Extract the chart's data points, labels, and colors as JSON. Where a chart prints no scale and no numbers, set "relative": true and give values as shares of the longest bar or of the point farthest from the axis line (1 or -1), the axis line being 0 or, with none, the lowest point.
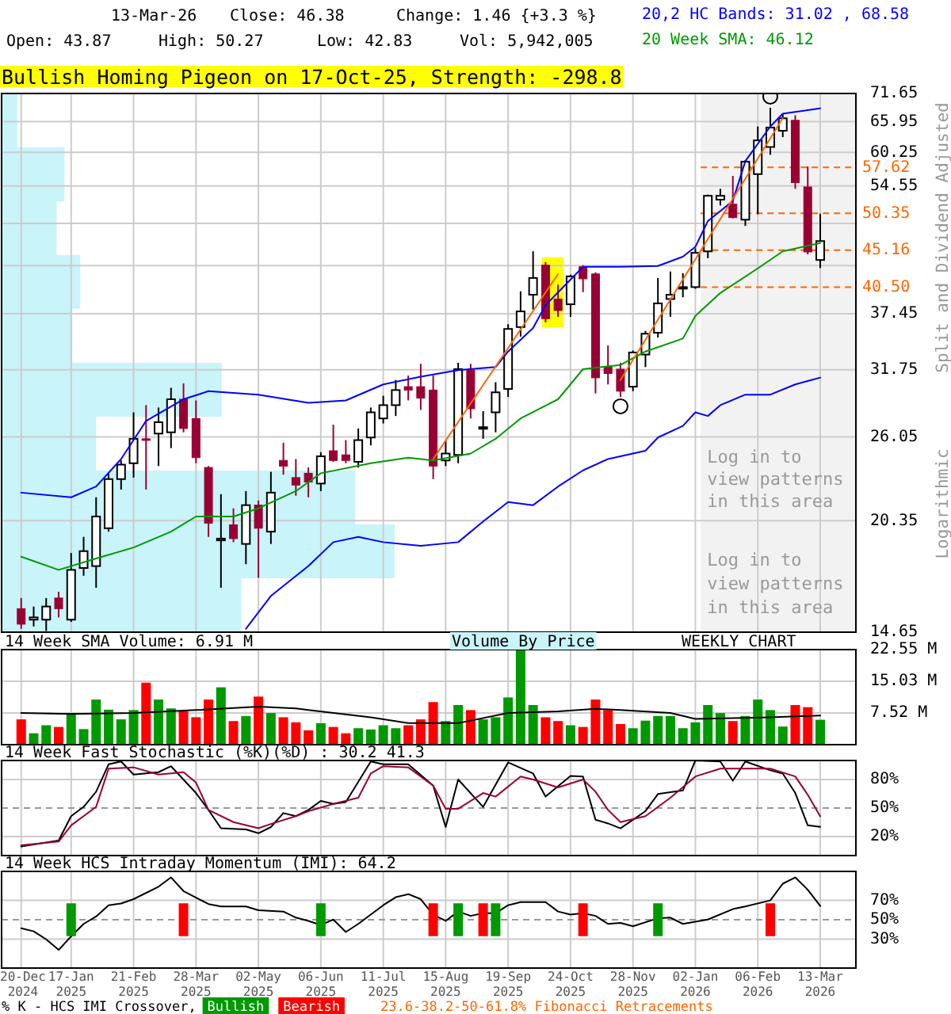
{
  "chart_data": [
    {
      "type": "candlestick",
      "title": "Bullish Homing Pigeon on 17-Oct-25, Strength: -298.8",
      "ylabel": "Split and Dividend Adjusted",
      "annotations": [
        "13-Mar-26",
        "Close: 46.38",
        "Change: 1.46 {+3.3 %}",
        "Open: 43.87",
        "High: 50.27",
        "Low: 42.83",
        "Vol: 5,942,005",
        "Log in to view patterns in this area",
        "Logarithmic"
      ],
      "x": [
        "2024-12-20",
        "2024-12-27",
        "2025-01-03",
        "2025-01-10",
        "2025-01-17",
        "2025-01-24",
        "2025-01-31",
        "2025-02-07",
        "2025-02-14",
        "2025-02-21",
        "2025-02-28",
        "2025-03-07",
        "2025-03-14",
        "2025-03-21",
        "2025-03-28",
        "2025-04-04",
        "2025-04-11",
        "2025-04-18",
        "2025-04-25",
        "2025-05-02",
        "2025-05-09",
        "2025-05-16",
        "2025-05-23",
        "2025-05-30",
        "2025-06-06",
        "2025-06-13",
        "2025-06-20",
        "2025-06-27",
        "2025-07-04",
        "2025-07-11",
        "2025-07-18",
        "2025-07-25",
        "2025-08-01",
        "2025-08-08",
        "2025-08-15",
        "2025-08-22",
        "2025-08-29",
        "2025-09-05",
        "2025-09-12",
        "2025-09-19",
        "2025-09-26",
        "2025-10-03",
        "2025-10-10",
        "2025-10-17",
        "2025-10-24",
        "2025-10-31",
        "2025-11-07",
        "2025-11-14",
        "2025-11-21",
        "2025-11-28",
        "2025-12-05",
        "2025-12-12",
        "2025-12-19",
        "2025-12-26",
        "2026-01-02",
        "2026-01-09",
        "2026-01-16",
        "2026-01-23",
        "2026-01-30",
        "2026-02-06",
        "2026-02-13",
        "2026-02-20",
        "2026-02-27",
        "2026-03-06",
        "2026-03-13"
      ],
      "ohlc": [
        [
          15.7,
          16.2,
          14.8,
          15.0
        ],
        [
          15.2,
          15.8,
          14.9,
          15.3
        ],
        [
          15.2,
          16.2,
          14.7,
          15.8
        ],
        [
          16.2,
          16.5,
          15.3,
          15.7
        ],
        [
          15.2,
          18.5,
          15.1,
          17.6
        ],
        [
          17.7,
          19.4,
          17.3,
          18.6
        ],
        [
          17.8,
          21.8,
          16.7,
          20.6
        ],
        [
          19.9,
          23.4,
          19.7,
          23.0
        ],
        [
          23.0,
          24.3,
          22.3,
          24.0
        ],
        [
          24.1,
          28.0,
          23.1,
          25.9
        ],
        [
          25.9,
          28.6,
          22.3,
          25.8
        ],
        [
          26.3,
          28.4,
          23.9,
          27.2
        ],
        [
          26.4,
          30.1,
          25.2,
          29.1
        ],
        [
          29.1,
          30.5,
          26.4,
          26.7
        ],
        [
          27.5,
          29.0,
          24.1,
          24.5
        ],
        [
          23.8,
          23.9,
          19.4,
          20.2
        ],
        [
          19.2,
          22.0,
          16.7,
          19.3
        ],
        [
          20.1,
          21.1,
          19.1,
          19.3
        ],
        [
          19.0,
          22.2,
          17.9,
          21.3
        ],
        [
          21.3,
          21.6,
          17.2,
          19.9
        ],
        [
          19.7,
          23.5,
          19.0,
          22.1
        ],
        [
          24.3,
          25.6,
          23.3,
          23.9
        ],
        [
          23.1,
          24.4,
          21.9,
          22.6
        ],
        [
          23.4,
          23.8,
          21.8,
          22.8
        ],
        [
          22.7,
          24.9,
          22.2,
          24.6
        ],
        [
          25.0,
          27.0,
          24.2,
          24.3
        ],
        [
          24.7,
          25.8,
          24.1,
          24.3
        ],
        [
          24.2,
          26.7,
          23.8,
          25.8
        ],
        [
          26.0,
          28.4,
          25.4,
          28.0
        ],
        [
          27.5,
          29.4,
          27.1,
          28.6
        ],
        [
          28.6,
          30.8,
          27.7,
          29.9
        ],
        [
          30.2,
          31.2,
          29.0,
          29.9
        ],
        [
          30.2,
          32.3,
          28.2,
          29.2
        ],
        [
          29.9,
          31.2,
          23.0,
          23.9
        ],
        [
          24.3,
          25.8,
          23.9,
          24.8
        ],
        [
          24.7,
          32.4,
          24.1,
          31.8
        ],
        [
          31.7,
          32.3,
          27.5,
          28.3
        ],
        [
          26.7,
          28.1,
          25.9,
          26.8
        ],
        [
          28.0,
          30.6,
          26.4,
          29.7
        ],
        [
          30.0,
          36.3,
          29.3,
          35.8
        ],
        [
          36.0,
          40.0,
          35.0,
          37.7
        ],
        [
          39.6,
          45.0,
          37.9,
          41.6
        ],
        [
          43.2,
          43.6,
          36.5,
          36.9
        ],
        [
          39.1,
          40.8,
          37.1,
          37.8
        ],
        [
          38.5,
          42.0,
          37.1,
          41.8
        ],
        [
          43.0,
          43.2,
          39.9,
          41.5
        ],
        [
          42.1,
          42.3,
          29.6,
          31.0
        ],
        [
          32.0,
          34.1,
          30.4,
          31.4
        ],
        [
          31.8,
          32.4,
          29.3,
          29.8
        ],
        [
          30.2,
          33.6,
          29.8,
          33.4
        ],
        [
          33.2,
          35.6,
          32.0,
          35.3
        ],
        [
          35.4,
          41.6,
          34.9,
          38.6
        ],
        [
          39.1,
          42.4,
          37.1,
          39.6
        ],
        [
          40.4,
          42.2,
          39.3,
          40.5
        ],
        [
          40.5,
          45.4,
          40.3,
          44.8
        ],
        [
          45.0,
          53.2,
          44.1,
          53.0
        ],
        [
          52.4,
          54.1,
          51.5,
          53.0
        ],
        [
          51.7,
          56.2,
          49.6,
          49.7
        ],
        [
          49.4,
          58.9,
          48.5,
          58.6
        ],
        [
          56.5,
          65.0,
          50.2,
          62.4
        ],
        [
          61.2,
          68.7,
          59.8,
          64.8
        ],
        [
          64.2,
          67.5,
          63.0,
          66.6
        ],
        [
          66.2,
          67.2,
          54.1,
          55.1
        ],
        [
          54.4,
          57.8,
          44.6,
          44.92
        ],
        [
          43.87,
          50.27,
          42.83,
          46.38
        ]
      ],
      "series": [
        {
          "type": "line",
          "name": "20,2 HC Bands: 31.02 , 68.58",
          "color": "#0000ff",
          "x": [
            "2024-12-20",
            "2025-01-17",
            "2025-01-31",
            "2025-02-14",
            "2025-02-28",
            "2025-03-21",
            "2025-04-04",
            "2025-05-02",
            "2025-05-30",
            "2025-06-20",
            "2025-07-11",
            "2025-08-01",
            "2025-08-22",
            "2025-09-12",
            "2025-09-19",
            "2025-10-03",
            "2025-10-10",
            "2025-10-31",
            "2025-11-21",
            "2025-12-12",
            "2025-12-26",
            "2026-01-02",
            "2026-01-09",
            "2026-01-23",
            "2026-01-30",
            "2026-02-13",
            "2026-02-20",
            "2026-03-13"
          ],
          "values": [
            22.1,
            21.8,
            22.5,
            24.4,
            27.3,
            29.1,
            29.8,
            29.5,
            28.8,
            29.0,
            30.4,
            31.1,
            31.7,
            32.0,
            33.5,
            35.9,
            38.4,
            43.0,
            43.0,
            43.1,
            44.3,
            45.6,
            49.2,
            52.2,
            58.7,
            65.0,
            67.5,
            68.58
          ]
        },
        {
          "type": "line",
          "color": "#0000ff",
          "x": [
            "2025-04-25",
            "2025-05-09",
            "2025-05-30",
            "2025-06-13",
            "2025-06-27",
            "2025-07-11",
            "2025-08-01",
            "2025-08-22",
            "2025-09-05",
            "2025-09-19",
            "2025-10-03",
            "2025-10-17",
            "2025-10-31",
            "2025-11-14",
            "2025-12-05",
            "2025-12-12",
            "2025-12-26",
            "2026-01-02",
            "2026-01-09",
            "2026-01-16",
            "2026-01-30",
            "2026-02-13",
            "2026-02-27",
            "2026-03-13"
          ],
          "values": [
            14.8,
            16.3,
            17.8,
            19.1,
            19.4,
            19.1,
            18.9,
            19.1,
            20.3,
            21.5,
            21.3,
            22.5,
            23.6,
            24.4,
            25.0,
            26.0,
            26.9,
            28.0,
            27.7,
            28.6,
            29.5,
            29.5,
            30.4,
            31.02
          ]
        },
        {
          "type": "line",
          "name": "20 Week SMA: 46.12",
          "color": "#009900",
          "x": [
            "2024-12-20",
            "2025-01-10",
            "2025-01-31",
            "2025-02-21",
            "2025-03-14",
            "2025-03-28",
            "2025-04-18",
            "2025-05-02",
            "2025-05-23",
            "2025-06-06",
            "2025-07-04",
            "2025-07-25",
            "2025-08-08",
            "2025-08-29",
            "2025-09-12",
            "2025-09-26",
            "2025-10-17",
            "2025-10-31",
            "2025-11-21",
            "2025-12-05",
            "2025-12-26",
            "2026-01-02",
            "2026-01-16",
            "2026-02-06",
            "2026-02-20",
            "2026-03-13"
          ],
          "values": [
            18.3,
            17.6,
            18.2,
            18.8,
            19.7,
            20.6,
            20.6,
            21.1,
            22.2,
            23.4,
            24.1,
            24.5,
            24.3,
            24.8,
            25.9,
            27.5,
            29.1,
            31.8,
            32.2,
            33.5,
            34.8,
            37.2,
            39.8,
            42.8,
            45.0,
            46.12
          ]
        },
        {
          "type": "line",
          "color": "#ff6600",
          "x": [
            "2025-08-08",
            "2025-10-17"
          ],
          "values": [
            24.4,
            42.1
          ]
        },
        {
          "type": "line",
          "color": "#ff6600",
          "x": [
            "2025-11-21",
            "2026-02-20"
          ],
          "values": [
            30.8,
            66.6
          ]
        },
        {
          "type": "scatter",
          "marker": "circle",
          "color": "#000000",
          "x": [
            "2025-11-21",
            "2026-02-13"
          ],
          "values": [
            28.5,
            71.0
          ]
        }
      ],
      "xlim": [
        "2024-12-09",
        "2026-04-02"
      ],
      "ylim": [
        14.65,
        71.65
      ],
      "log": true,
      "xticks": [
        "2024-12-20",
        "2025-01-17",
        "2025-02-21",
        "2025-03-28",
        "2025-05-02",
        "2025-06-06",
        "2025-07-11",
        "2025-08-15",
        "2025-09-19",
        "2025-10-24",
        "2025-11-28",
        "2026-01-02",
        "2026-02-06",
        "2026-03-13"
      ],
      "yticks": [
        14.65,
        20.35,
        26.05,
        31.75,
        37.45,
        {
          "value": 43.15,
          "label": null
        },
        {
          "value": 48.85,
          "label": null
        },
        54.55,
        60.25,
        65.95,
        71.65
      ],
      "grid": true,
      "legend": "top right",
      "tick_labels": "y",
      "bands": [
        {
          "axis": "x",
          "from": "2025-10-08",
          "to": "2025-10-20",
          "color": "#ffff00"
        },
        {
          "axis": "x",
          "from": "2026-01-05",
          "to": "2026-04-02",
          "label": "Log in to view patterns in this area",
          "color": "#f2f2f2"
        }
      ],
      "ref_lines": [
        {
          "axis": "y",
          "value": 57.62,
          "label": "57.62",
          "color": "#ff6600",
          "line_style": "dashed"
        },
        {
          "axis": "y",
          "value": 50.35,
          "label": "50.35",
          "color": "#ff6600",
          "line_style": "dashed"
        },
        {
          "axis": "y",
          "value": 45.16,
          "label": "45.16",
          "color": "#ff6600",
          "line_style": "dashed"
        },
        {
          "axis": "y",
          "value": 40.5,
          "label": "40.50",
          "color": "#ff6600",
          "line_style": "dashed"
        }
      ]
    },
    {
      "type": "bar",
      "orientation": "horizontal",
      "relative": true,
      "categories": [
        null,
        null,
        null,
        null,
        null,
        null,
        null,
        null,
        null,
        null
      ],
      "values": [
        0.04,
        0.16,
        0.14,
        0.2,
        0.18,
        0.56,
        0.24,
        0.9,
        1,
        0.61
      ],
      "color": "#c8f4fa",
      "tick_labels": false
    },
    {
      "type": "bar",
      "title": "14 Week SMA Volume: 6.91 M",
      "annotations": [
        "Volume By Price",
        "WEEKLY CHART"
      ],
      "x": [
        "2024-12-20",
        "2024-12-27",
        "2025-01-03",
        "2025-01-10",
        "2025-01-17",
        "2025-01-24",
        "2025-01-31",
        "2025-02-07",
        "2025-02-14",
        "2025-02-21",
        "2025-02-28",
        "2025-03-07",
        "2025-03-14",
        "2025-03-21",
        "2025-03-28",
        "2025-04-04",
        "2025-04-11",
        "2025-04-18",
        "2025-04-25",
        "2025-05-02",
        "2025-05-09",
        "2025-05-16",
        "2025-05-23",
        "2025-05-30",
        "2025-06-06",
        "2025-06-13",
        "2025-06-20",
        "2025-06-27",
        "2025-07-04",
        "2025-07-11",
        "2025-07-18",
        "2025-07-25",
        "2025-08-01",
        "2025-08-08",
        "2025-08-15",
        "2025-08-22",
        "2025-08-29",
        "2025-09-05",
        "2025-09-12",
        "2025-09-19",
        "2025-09-26",
        "2025-10-03",
        "2025-10-10",
        "2025-10-17",
        "2025-10-24",
        "2025-10-31",
        "2025-11-07",
        "2025-11-14",
        "2025-11-21",
        "2025-11-28",
        "2025-12-05",
        "2025-12-12",
        "2025-12-19",
        "2025-12-26",
        "2026-01-02",
        "2026-01-09",
        "2026-01-16",
        "2026-01-23",
        "2026-01-30",
        "2026-02-06",
        "2026-02-13",
        "2026-02-20",
        "2026-02-27",
        "2026-03-06",
        "2026-03-13"
      ],
      "series": [
        {
          "type": "bar",
          "values": [
            6.0,
            2.7,
            4.6,
            4.2,
            7.5,
            3.7,
            10.7,
            8.3,
            6.0,
            8.2,
            14.7,
            10.7,
            8.6,
            7.9,
            6.5,
            10.7,
            13.6,
            5.6,
            6.8,
            11.4,
            7.5,
            6.5,
            5.3,
            3.4,
            5.1,
            4.2,
            2.7,
            3.9,
            3.6,
            4.6,
            3.9,
            4.6,
            6.0,
            10.1,
            5.6,
            9.4,
            8.2,
            6.0,
            6.5,
            11.2,
            22.55,
            9.4,
            6.5,
            5.6,
            4.6,
            4.2,
            10.7,
            8.2,
            4.9,
            3.9,
            5.7,
            6.8,
            6.8,
            3.9,
            5.3,
            9.4,
            7.5,
            5.6,
            6.8,
            10.7,
            8.2,
            4.3,
            9.4,
            8.9,
            5.9
          ],
          "colors": [
            "#ff0000",
            "#009900",
            "#009900",
            "#ff0000",
            "#009900",
            "#009900",
            "#009900",
            "#009900",
            "#009900",
            "#009900",
            "#ff0000",
            "#009900",
            "#009900",
            "#ff0000",
            "#ff0000",
            "#ff0000",
            "#009900",
            "#ff0000",
            "#009900",
            "#ff0000",
            "#009900",
            "#ff0000",
            "#ff0000",
            "#ff0000",
            "#009900",
            "#ff0000",
            "#ff0000",
            "#009900",
            "#009900",
            "#009900",
            "#009900",
            "#ff0000",
            "#ff0000",
            "#ff0000",
            "#009900",
            "#009900",
            "#ff0000",
            "#009900",
            "#009900",
            "#009900",
            "#009900",
            "#009900",
            "#ff0000",
            "#ff0000",
            "#009900",
            "#ff0000",
            "#ff0000",
            "#ff0000",
            "#ff0000",
            "#009900",
            "#009900",
            "#009900",
            "#009900",
            "#009900",
            "#009900",
            "#009900",
            "#009900",
            "#ff0000",
            "#009900",
            "#009900",
            "#009900",
            "#009900",
            "#ff0000",
            "#ff0000",
            "#009900"
          ]
        },
        {
          "type": "line",
          "color": "#000000",
          "x": [
            "2024-12-20",
            "2025-01-17",
            "2025-02-21",
            "2025-03-28",
            "2025-05-02",
            "2025-05-23",
            "2025-05-30",
            "2025-07-04",
            "2025-07-25",
            "2025-08-22",
            "2025-09-19",
            "2025-10-17",
            "2025-11-07",
            "2025-11-21",
            "2025-12-19",
            "2026-01-02",
            "2026-02-13",
            "2026-03-13"
          ],
          "values": [
            7.5,
            7.3,
            7.5,
            8.2,
            9.0,
            8.6,
            8.2,
            6.5,
            5.1,
            5.1,
            7.5,
            7.9,
            8.5,
            8.2,
            7.5,
            6.1,
            6.5,
            6.91
          ]
        }
      ],
      "xlim": [
        "2024-12-09",
        "2026-04-02"
      ],
      "ylim": [
        0,
        22.55
      ],
      "xticks": [
        "2024-12-20",
        "2025-01-17",
        "2025-02-21",
        "2025-03-28",
        "2025-05-02",
        "2025-06-06",
        "2025-07-11",
        "2025-08-15",
        "2025-09-19",
        "2025-10-24",
        "2025-11-28",
        "2026-01-02",
        "2026-02-06",
        "2026-03-13"
      ],
      "yticks": [
        {
          "value": 7.52,
          "label": "7.52 M"
        },
        {
          "value": 15.03,
          "label": "15.03 M"
        },
        {
          "value": 22.55,
          "label": "22.55 M"
        }
      ],
      "grid": true,
      "tick_labels": "y"
    },
    {
      "type": "line",
      "title": "14 Week Fast Stochastic (%K)(%D) : 30.2 41.3",
      "series": [
        {
          "type": "line",
          "color": "#000000",
          "x": [
            "2024-12-20",
            "2025-01-10",
            "2025-01-17",
            "2025-01-24",
            "2025-01-31",
            "2025-02-07",
            "2025-02-14",
            "2025-02-21",
            "2025-03-07",
            "2025-03-14",
            "2025-03-28",
            "2025-04-04",
            "2025-04-11",
            "2025-04-25",
            "2025-05-02",
            "2025-05-09",
            "2025-05-16",
            "2025-05-23",
            "2025-05-30",
            "2025-06-06",
            "2025-06-13",
            "2025-06-20",
            "2025-07-04",
            "2025-07-11",
            "2025-07-25",
            "2025-08-08",
            "2025-08-15",
            "2025-08-22",
            "2025-09-05",
            "2025-09-19",
            "2025-10-03",
            "2025-10-10",
            "2025-10-24",
            "2025-10-31",
            "2025-11-07",
            "2025-11-14",
            "2025-11-21",
            "2025-12-05",
            "2025-12-12",
            "2025-12-26",
            "2026-01-02",
            "2026-01-16",
            "2026-01-23",
            "2026-01-30",
            "2026-02-13",
            "2026-02-20",
            "2026-02-27",
            "2026-03-06",
            "2026-03-13"
          ],
          "values": [
            9.5,
            15.8,
            41.5,
            51.2,
            67.2,
            96,
            99,
            85.2,
            87.7,
            94,
            65.8,
            48,
            28.7,
            27.5,
            23.5,
            30,
            44.7,
            41.5,
            48,
            57.5,
            54.3,
            56.3,
            99,
            96,
            96,
            73.5,
            30,
            80,
            51.2,
            98,
            86.3,
            62,
            83.8,
            83.2,
            37.7,
            33.8,
            28.7,
            46.7,
            64.7,
            68.5,
            100,
            99,
            78.7,
            99,
            89.7,
            86.3,
            65.8,
            31.8,
            30.2
          ]
        },
        {
          "type": "line",
          "color": "#990033",
          "x": [
            "2024-12-20",
            "2025-01-10",
            "2025-01-17",
            "2025-01-31",
            "2025-02-07",
            "2025-02-21",
            "2025-03-07",
            "2025-03-21",
            "2025-03-28",
            "2025-04-04",
            "2025-04-18",
            "2025-05-02",
            "2025-05-09",
            "2025-05-23",
            "2025-05-30",
            "2025-06-13",
            "2025-06-27",
            "2025-07-04",
            "2025-07-11",
            "2025-07-25",
            "2025-08-08",
            "2025-08-15",
            "2025-08-22",
            "2025-09-05",
            "2025-09-12",
            "2025-09-26",
            "2025-10-03",
            "2025-10-17",
            "2025-10-31",
            "2025-11-07",
            "2025-11-14",
            "2025-11-21",
            "2025-12-05",
            "2025-12-19",
            "2026-01-02",
            "2026-01-16",
            "2026-01-30",
            "2026-02-13",
            "2026-02-27",
            "2026-03-06",
            "2026-03-13"
          ],
          "values": [
            10.8,
            14.7,
            31.8,
            51.2,
            91.5,
            92.8,
            85.2,
            87.7,
            76.8,
            48,
            35.2,
            28.7,
            33.2,
            41.5,
            46.7,
            54.3,
            60.8,
            86.3,
            94,
            92.8,
            73.5,
            49.2,
            49.2,
            65.8,
            62,
            83.2,
            80,
            71.7,
            80,
            67.2,
            48,
            35.2,
            41.5,
            60.8,
            83.2,
            91.5,
            91.5,
            91.5,
            83.2,
            64,
            41.3
          ]
        }
      ],
      "xlim": [
        "2024-12-09",
        "2026-04-02"
      ],
      "ylim": [
        0,
        100
      ],
      "xticks": [
        "2024-12-20",
        "2025-01-17",
        "2025-02-21",
        "2025-03-28",
        "2025-05-02",
        "2025-06-06",
        "2025-07-11",
        "2025-08-15",
        "2025-09-19",
        "2025-10-24",
        "2025-11-28",
        "2026-01-02",
        "2026-02-06",
        "2026-03-13"
      ],
      "yticks": [
        {
          "value": 20,
          "label": "20%"
        },
        {
          "value": 50,
          "label": "50%"
        },
        {
          "value": 80,
          "label": "80%"
        }
      ],
      "grid": true,
      "tick_labels": "y",
      "ref_lines": [
        {
          "axis": "y",
          "value": 50,
          "color": "#999999",
          "line_style": "dashed"
        }
      ]
    },
    {
      "type": "line",
      "title": "14 Week HCS Intraday Momentum (IMI): 64.2",
      "legend": "bottom left",
      "legend_title": "% K - HCS IMI Crossover,",
      "annotations": [
        "23.6-38.2-50-61.8% Fibonacci Retracements"
      ],
      "series": [
        {
          "type": "line",
          "color": "#000000",
          "x": [
            "2024-12-20",
            "2024-12-27",
            "2025-01-03",
            "2025-01-10",
            "2025-01-17",
            "2025-01-24",
            "2025-01-31",
            "2025-02-07",
            "2025-02-14",
            "2025-02-21",
            "2025-03-07",
            "2025-03-14",
            "2025-03-21",
            "2025-04-04",
            "2025-04-11",
            "2025-04-25",
            "2025-05-02",
            "2025-05-16",
            "2025-05-23",
            "2025-05-30",
            "2025-06-06",
            "2025-06-13",
            "2025-06-20",
            "2025-06-27",
            "2025-07-11",
            "2025-07-18",
            "2025-07-25",
            "2025-08-01",
            "2025-08-08",
            "2025-08-15",
            "2025-08-22",
            "2025-08-29",
            "2025-09-05",
            "2025-09-12",
            "2025-09-19",
            "2025-09-26",
            "2025-10-10",
            "2025-10-17",
            "2025-10-24",
            "2025-10-31",
            "2025-11-07",
            "2025-11-14",
            "2025-11-21",
            "2025-11-28",
            "2025-12-12",
            "2025-12-19",
            "2025-12-26",
            "2026-01-09",
            "2026-01-23",
            "2026-01-30",
            "2026-02-13",
            "2026-02-20",
            "2026-02-27",
            "2026-03-06",
            "2026-03-13"
          ],
          "values": [
            41.2,
            38,
            29.7,
            18.8,
            32.8,
            45.7,
            53.3,
            65,
            66.8,
            71.3,
            84.2,
            93.8,
            79.7,
            66.2,
            63.7,
            63.7,
            59.8,
            58.5,
            52.2,
            48.8,
            44.5,
            50.2,
            37.3,
            45.7,
            65,
            73.3,
            76.5,
            71.3,
            55.3,
            48.8,
            58.5,
            54,
            56.7,
            56.7,
            65,
            68.2,
            68.2,
            58.5,
            55.3,
            56.7,
            54,
            45.7,
            46.7,
            43.3,
            51.5,
            52.2,
            45.7,
            50.2,
            61,
            63.7,
            70,
            87.3,
            93.8,
            81,
            64.2
          ]
        },
        {
          "type": "bar",
          "name": "Bullish",
          "color": "#009900",
          "x": [
            "2025-01-17",
            "2025-06-06",
            "2025-08-22",
            "2025-09-12",
            "2025-12-12"
          ],
          "base": [
            33,
            33,
            33,
            33,
            33
          ],
          "values": [
            34,
            34,
            34,
            34,
            34
          ]
        },
        {
          "type": "bar",
          "name": "Bearish",
          "color": "#ff0000",
          "x": [
            "2025-03-21",
            "2025-08-08",
            "2025-09-05",
            "2025-10-31",
            "2026-02-13"
          ],
          "base": [
            33,
            33,
            33,
            33,
            33
          ],
          "values": [
            34,
            34,
            34,
            34,
            34
          ]
        }
      ],
      "xlim": [
        "2024-12-09",
        "2026-04-02"
      ],
      "ylim": [
        0,
        100
      ],
      "xticks": [
        {
          "value": "2024-12-20",
          "label": "20-Dec 2024"
        },
        {
          "value": "2025-01-17",
          "label": "17-Jan 2025"
        },
        {
          "value": "2025-02-21",
          "label": "21-Feb 2025"
        },
        {
          "value": "2025-03-28",
          "label": "28-Mar 2025"
        },
        {
          "value": "2025-05-02",
          "label": "02-May 2025"
        },
        {
          "value": "2025-06-06",
          "label": "06-Jun 2025"
        },
        {
          "value": "2025-07-11",
          "label": "11-Jul 2025"
        },
        {
          "value": "2025-08-15",
          "label": "15-Aug 2025"
        },
        {
          "value": "2025-09-19",
          "label": "19-Sep 2025"
        },
        {
          "value": "2025-10-24",
          "label": "24-Oct 2025"
        },
        {
          "value": "2025-11-28",
          "label": "28-Nov 2025"
        },
        {
          "value": "2026-01-02",
          "label": "02-Jan 2026"
        },
        {
          "value": "2026-02-06",
          "label": "06-Feb 2026"
        },
        {
          "value": "2026-03-13",
          "label": "13-Mar 2026"
        }
      ],
      "yticks": [
        {
          "value": 30,
          "label": "30%"
        },
        {
          "value": 50,
          "label": "50%"
        },
        {
          "value": 70,
          "label": "70%"
        }
      ],
      "grid": true,
      "ref_lines": [
        {
          "axis": "y",
          "value": 50,
          "color": "#999999",
          "line_style": "dashed"
        }
      ]
    }
  ]
}
